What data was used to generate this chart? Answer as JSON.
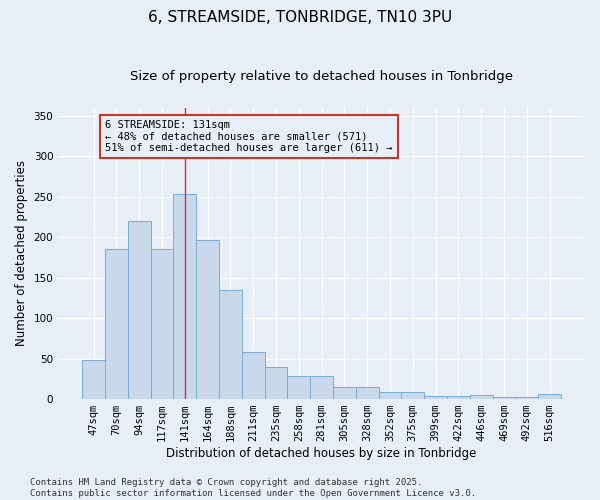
{
  "title": "6, STREAMSIDE, TONBRIDGE, TN10 3PU",
  "subtitle": "Size of property relative to detached houses in Tonbridge",
  "xlabel": "Distribution of detached houses by size in Tonbridge",
  "ylabel": "Number of detached properties",
  "categories": [
    "47sqm",
    "70sqm",
    "94sqm",
    "117sqm",
    "141sqm",
    "164sqm",
    "188sqm",
    "211sqm",
    "235sqm",
    "258sqm",
    "281sqm",
    "305sqm",
    "328sqm",
    "352sqm",
    "375sqm",
    "399sqm",
    "422sqm",
    "446sqm",
    "469sqm",
    "492sqm",
    "516sqm"
  ],
  "values": [
    48,
    185,
    220,
    185,
    253,
    196,
    135,
    58,
    40,
    29,
    29,
    15,
    15,
    9,
    9,
    4,
    4,
    5,
    3,
    2,
    6
  ],
  "bar_color": "#c9d9eb",
  "bar_edge_color": "#7aadd4",
  "background_color": "#e8eef5",
  "ylim": [
    0,
    360
  ],
  "yticks": [
    0,
    50,
    100,
    150,
    200,
    250,
    300,
    350
  ],
  "annotation_text": "6 STREAMSIDE: 131sqm\n← 48% of detached houses are smaller (571)\n51% of semi-detached houses are larger (611) →",
  "annotation_bar_index": 4,
  "vline_color": "#c0392b",
  "footnote": "Contains HM Land Registry data © Crown copyright and database right 2025.\nContains public sector information licensed under the Open Government Licence v3.0.",
  "grid_color": "#ffffff",
  "title_fontsize": 11,
  "subtitle_fontsize": 9.5,
  "axis_label_fontsize": 8.5,
  "tick_fontsize": 7.5,
  "annotation_fontsize": 7.5,
  "footnote_fontsize": 6.5
}
